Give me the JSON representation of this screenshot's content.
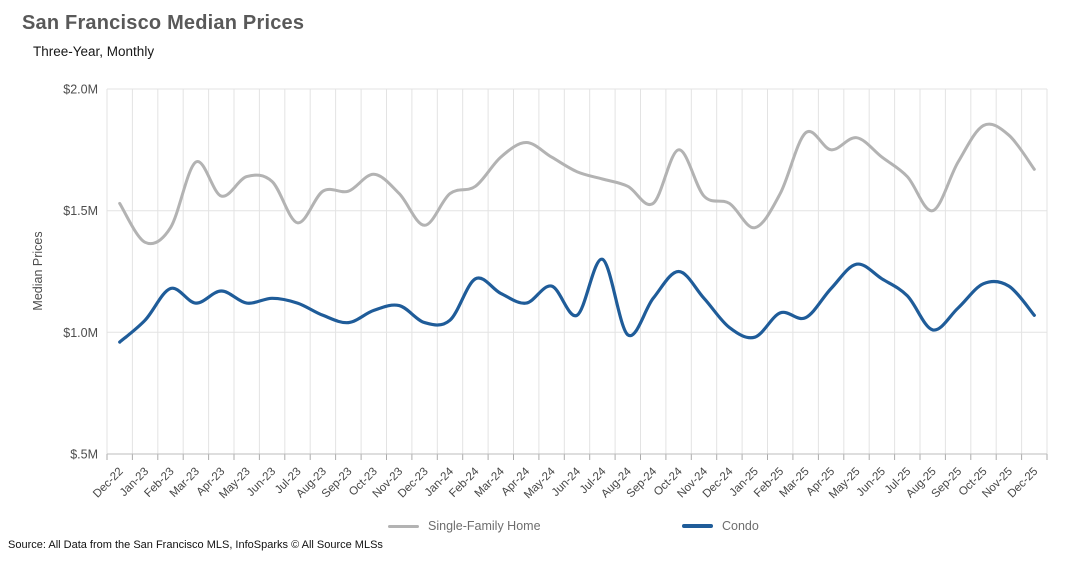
{
  "header": {
    "title": "San Francisco Median Prices",
    "subtitle": "Three-Year, Monthly"
  },
  "footer": {
    "source": "Source: All Data from the San Francisco MLS, InfoSparks © All Source MLSs"
  },
  "colors": {
    "single_family": "#b3b3b3",
    "condo": "#1f5c99",
    "gridline": "#e3e3e3",
    "axis_text": "#4d4d4d",
    "title_text": "#595959"
  },
  "chart_data": {
    "type": "line",
    "title": "San Francisco Median Prices",
    "subtitle": "Three-Year, Monthly",
    "xlabel": "",
    "ylabel": "Median Prices",
    "unit": "millions USD",
    "ylim": [
      0.5,
      2.0
    ],
    "grid": true,
    "legend_position": "bottom",
    "y_ticks": [
      {
        "label": "$2.0M",
        "value": 2.0
      },
      {
        "label": "$1.5M",
        "value": 1.5
      },
      {
        "label": "$1.0M",
        "value": 1.0
      },
      {
        "label": "$.5M",
        "value": 0.5
      }
    ],
    "categories": [
      "Dec-22",
      "Jan-23",
      "Feb-23",
      "Mar-23",
      "Apr-23",
      "May-23",
      "Jun-23",
      "Jul-23",
      "Aug-23",
      "Sep-23",
      "Oct-23",
      "Nov-23",
      "Dec-23",
      "Jan-24",
      "Feb-24",
      "Mar-24",
      "Apr-24",
      "May-24",
      "Jun-24",
      "Jul-24",
      "Aug-24",
      "Sep-24",
      "Oct-24",
      "Nov-24",
      "Dec-24",
      "Jan-25",
      "Feb-25",
      "Mar-25",
      "Apr-25",
      "May-25",
      "Jun-25",
      "Jul-25",
      "Aug-25",
      "Sep-25",
      "Oct-25",
      "Nov-25",
      "Dec-25"
    ],
    "series": [
      {
        "name": "Single-Family Home",
        "color": "#b3b3b3",
        "stroke_width": 3,
        "values": [
          1.53,
          1.37,
          1.43,
          1.7,
          1.56,
          1.64,
          1.62,
          1.45,
          1.58,
          1.58,
          1.65,
          1.57,
          1.44,
          1.57,
          1.6,
          1.72,
          1.78,
          1.72,
          1.66,
          1.63,
          1.6,
          1.53,
          1.75,
          1.56,
          1.53,
          1.43,
          1.57,
          1.82,
          1.75,
          1.8,
          1.72,
          1.64,
          1.5,
          1.7,
          1.85,
          1.81,
          1.67
        ]
      },
      {
        "name": "Condo",
        "color": "#1f5c99",
        "stroke_width": 3.2,
        "values": [
          0.96,
          1.05,
          1.18,
          1.12,
          1.17,
          1.12,
          1.14,
          1.12,
          1.07,
          1.04,
          1.09,
          1.11,
          1.04,
          1.05,
          1.22,
          1.16,
          1.12,
          1.19,
          1.07,
          1.3,
          0.99,
          1.14,
          1.25,
          1.14,
          1.02,
          0.98,
          1.08,
          1.06,
          1.18,
          1.28,
          1.22,
          1.15,
          1.01,
          1.1,
          1.2,
          1.19,
          1.07
        ]
      }
    ]
  }
}
